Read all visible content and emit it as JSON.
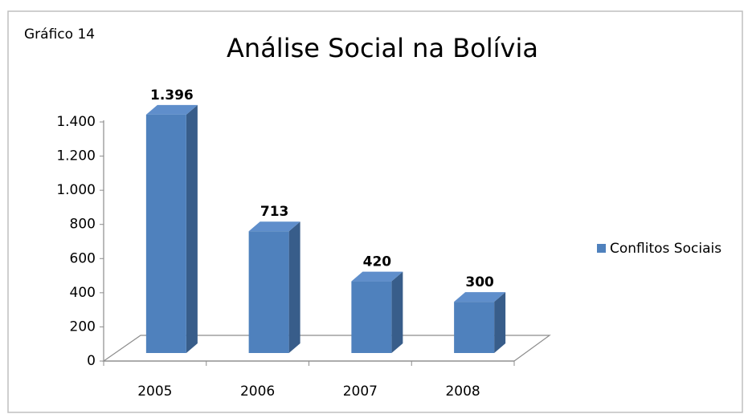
{
  "chart_data": {
    "type": "bar3d",
    "annotation": "Gráfico 14",
    "title": "Análise Social na Bolívia",
    "categories": [
      "2005",
      "2006",
      "2007",
      "2008"
    ],
    "series": [
      {
        "name": "Conflitos Sociais",
        "color": "#4f81bd",
        "values": [
          1396,
          713,
          420,
          300
        ],
        "value_labels": [
          "1.396",
          "713",
          "420",
          "300"
        ]
      }
    ],
    "ylim": [
      0,
      1400
    ],
    "yticks": [
      0,
      200,
      400,
      600,
      800,
      {
        "value": 1000,
        "label": "1.000"
      },
      {
        "value": 1200,
        "label": "1.200"
      },
      {
        "value": 1400,
        "label": "1.400"
      }
    ],
    "legend": "right"
  }
}
